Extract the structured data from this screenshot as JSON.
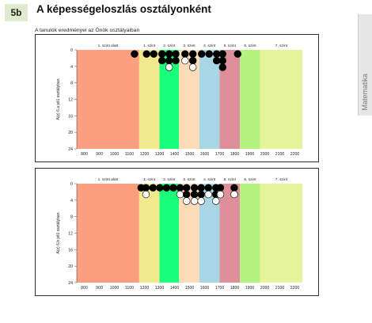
{
  "header": {
    "badge": "5b",
    "title": "A képességeloszlás osztályonként",
    "subtitle": "A tanulók eredményei az Önök osztályaiban",
    "side_tab": "Matematika"
  },
  "chart_data": [
    {
      "type": "scatter",
      "title": "",
      "ylabel": "A(z) 6.a jelű osztályban",
      "xlabel": "",
      "xlim": [
        750,
        2250
      ],
      "ylim": [
        24,
        0
      ],
      "x_ticks": [
        800,
        900,
        1000,
        1100,
        1200,
        1300,
        1400,
        1500,
        1600,
        1700,
        1800,
        1900,
        2000,
        2100,
        2200
      ],
      "y_ticks": [
        0,
        4,
        8,
        12,
        16,
        20,
        24
      ],
      "levels": [
        {
          "label": "1. szint alatt",
          "from": 750,
          "to": 1165,
          "color": "#fb9f7e"
        },
        {
          "label": "1. szint",
          "from": 1165,
          "to": 1300,
          "color": "#f1ea8c"
        },
        {
          "label": "2. szint",
          "from": 1300,
          "to": 1430,
          "color": "#19ff7b"
        },
        {
          "label": "3. szint",
          "from": 1430,
          "to": 1565,
          "color": "#fddbb8"
        },
        {
          "label": "4. szint",
          "from": 1565,
          "to": 1700,
          "color": "#a9d6e5"
        },
        {
          "label": "5. szint",
          "from": 1700,
          "to": 1835,
          "color": "#de8f9c"
        },
        {
          "label": "6. szint",
          "from": 1835,
          "to": 1970,
          "color": "#b6f280"
        },
        {
          "label": "7. szint",
          "from": 1970,
          "to": 2250,
          "color": "#e5f49a"
        }
      ],
      "dot_colors": {
        "black": "#000000",
        "white": "#ffffff"
      },
      "columns": [
        {
          "x": 1134,
          "dots": [
            "black"
          ]
        },
        {
          "x": 1214,
          "dots": [
            "black"
          ]
        },
        {
          "x": 1262,
          "dots": [
            "black"
          ]
        },
        {
          "x": 1317,
          "dots": [
            "black",
            "black"
          ]
        },
        {
          "x": 1364,
          "dots": [
            "black",
            "black",
            "white"
          ]
        },
        {
          "x": 1408,
          "dots": [
            "black",
            "black"
          ]
        },
        {
          "x": 1470,
          "dots": [
            "black",
            "white"
          ]
        },
        {
          "x": 1522,
          "dots": [
            "black",
            "black",
            "white"
          ]
        },
        {
          "x": 1580,
          "dots": [
            "black"
          ]
        },
        {
          "x": 1630,
          "dots": [
            "black"
          ]
        },
        {
          "x": 1680,
          "dots": [
            "black",
            "black"
          ]
        },
        {
          "x": 1720,
          "dots": [
            "black",
            "black",
            "black"
          ]
        },
        {
          "x": 1820,
          "dots": [
            "black"
          ]
        }
      ]
    },
    {
      "type": "scatter",
      "title": "",
      "ylabel": "A(z) 6.b jelű osztályban",
      "xlabel": "",
      "xlim": [
        750,
        2250
      ],
      "ylim": [
        24,
        0
      ],
      "x_ticks": [
        800,
        900,
        1000,
        1100,
        1200,
        1300,
        1400,
        1500,
        1600,
        1700,
        1800,
        1900,
        2000,
        2100,
        2200
      ],
      "y_ticks": [
        0,
        4,
        8,
        12,
        16,
        20,
        24
      ],
      "levels": [
        {
          "label": "1. szint alatt",
          "from": 750,
          "to": 1165,
          "color": "#fb9f7e"
        },
        {
          "label": "1. szint",
          "from": 1165,
          "to": 1300,
          "color": "#f1ea8c"
        },
        {
          "label": "2. szint",
          "from": 1300,
          "to": 1430,
          "color": "#19ff7b"
        },
        {
          "label": "3. szint",
          "from": 1430,
          "to": 1565,
          "color": "#fddbb8"
        },
        {
          "label": "4. szint",
          "from": 1565,
          "to": 1700,
          "color": "#a9d6e5"
        },
        {
          "label": "5. szint",
          "from": 1700,
          "to": 1835,
          "color": "#de8f9c"
        },
        {
          "label": "6. szint",
          "from": 1835,
          "to": 1970,
          "color": "#b6f280"
        },
        {
          "label": "7. szint",
          "from": 1970,
          "to": 2250,
          "color": "#e5f49a"
        }
      ],
      "dot_colors": {
        "black": "#000000",
        "white": "#ffffff"
      },
      "columns": [
        {
          "x": 1178,
          "dots": [
            "black"
          ]
        },
        {
          "x": 1210,
          "dots": [
            "black",
            "white"
          ]
        },
        {
          "x": 1257,
          "dots": [
            "black"
          ]
        },
        {
          "x": 1302,
          "dots": [
            "black"
          ]
        },
        {
          "x": 1347,
          "dots": [
            "black"
          ]
        },
        {
          "x": 1392,
          "dots": [
            "black"
          ]
        },
        {
          "x": 1437,
          "dots": [
            "black",
            "white"
          ]
        },
        {
          "x": 1480,
          "dots": [
            "black",
            "black",
            "white"
          ]
        },
        {
          "x": 1532,
          "dots": [
            "black",
            "black",
            "white"
          ]
        },
        {
          "x": 1577,
          "dots": [
            "black",
            "black",
            "white"
          ]
        },
        {
          "x": 1625,
          "dots": [
            "black",
            "white"
          ]
        },
        {
          "x": 1675,
          "dots": [
            "black",
            "black",
            "white"
          ]
        },
        {
          "x": 1705,
          "dots": [
            "black",
            "white"
          ]
        },
        {
          "x": 1797,
          "dots": [
            "black",
            "white"
          ]
        }
      ]
    }
  ]
}
